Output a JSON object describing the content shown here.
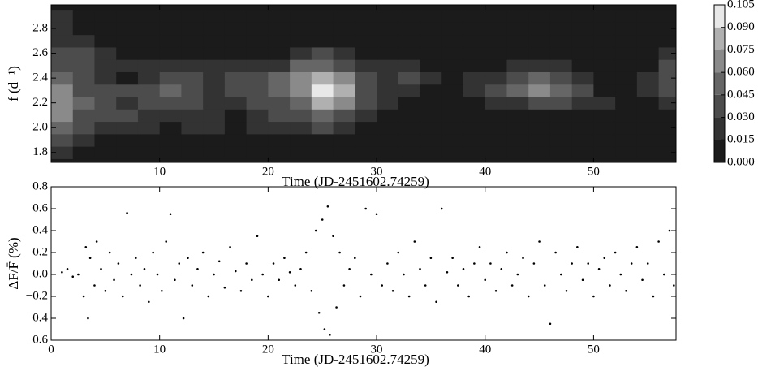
{
  "chart_data": [
    {
      "type": "contour",
      "xlabel": "Time (JD-2451602.74259)",
      "ylabel": "f (d⁻¹)",
      "x": [
        1,
        3,
        5,
        7,
        9,
        11,
        13,
        15,
        17,
        19,
        21,
        23,
        25,
        27,
        29,
        31,
        33,
        35,
        37,
        39,
        41,
        43,
        45,
        47,
        49,
        51,
        53,
        55,
        57
      ],
      "y": [
        1.8,
        1.9,
        2.0,
        2.1,
        2.2,
        2.3,
        2.4,
        2.5,
        2.6,
        2.7,
        2.8,
        2.9
      ],
      "z": [
        [
          0.02,
          0.01,
          0.005,
          0.005,
          0.005,
          0.005,
          0.005,
          0.005,
          0.005,
          0.005,
          0.005,
          0.005,
          0.005,
          0.005,
          0.005,
          0.005,
          0.005,
          0.005,
          0.005,
          0.005,
          0.005,
          0.005,
          0.005,
          0.005,
          0.005,
          0.005,
          0.005,
          0.005,
          0.005
        ],
        [
          0.035,
          0.02,
          0.01,
          0.005,
          0.005,
          0.005,
          0.005,
          0.005,
          0.005,
          0.005,
          0.005,
          0.005,
          0.01,
          0.005,
          0.005,
          0.005,
          0.005,
          0.005,
          0.005,
          0.005,
          0.005,
          0.005,
          0.005,
          0.005,
          0.005,
          0.005,
          0.005,
          0.005,
          0.005
        ],
        [
          0.05,
          0.03,
          0.02,
          0.02,
          0.02,
          0.01,
          0.02,
          0.02,
          0.01,
          0.02,
          0.02,
          0.02,
          0.03,
          0.02,
          0.01,
          0.005,
          0.005,
          0.005,
          0.005,
          0.005,
          0.005,
          0.005,
          0.005,
          0.005,
          0.005,
          0.005,
          0.005,
          0.005,
          0.005
        ],
        [
          0.06,
          0.04,
          0.03,
          0.03,
          0.025,
          0.02,
          0.025,
          0.02,
          0.01,
          0.025,
          0.03,
          0.035,
          0.05,
          0.04,
          0.02,
          0.01,
          0.005,
          0.005,
          0.005,
          0.005,
          0.005,
          0.01,
          0.01,
          0.01,
          0.01,
          0.005,
          0.005,
          0.005,
          0.005
        ],
        [
          0.065,
          0.045,
          0.03,
          0.02,
          0.03,
          0.04,
          0.035,
          0.02,
          0.025,
          0.03,
          0.04,
          0.05,
          0.08,
          0.06,
          0.03,
          0.02,
          0.01,
          0.005,
          0.005,
          0.01,
          0.02,
          0.025,
          0.03,
          0.03,
          0.025,
          0.02,
          0.01,
          0.005,
          0.02
        ],
        [
          0.06,
          0.04,
          0.03,
          0.03,
          0.035,
          0.045,
          0.04,
          0.025,
          0.03,
          0.035,
          0.045,
          0.07,
          0.1,
          0.075,
          0.04,
          0.025,
          0.02,
          0.01,
          0.01,
          0.02,
          0.03,
          0.045,
          0.06,
          0.045,
          0.03,
          0.01,
          0.005,
          0.02,
          0.03
        ],
        [
          0.045,
          0.03,
          0.02,
          0.01,
          0.025,
          0.035,
          0.03,
          0.025,
          0.03,
          0.035,
          0.045,
          0.065,
          0.085,
          0.065,
          0.035,
          0.025,
          0.035,
          0.015,
          0.01,
          0.015,
          0.025,
          0.035,
          0.045,
          0.035,
          0.02,
          0.005,
          0.005,
          0.02,
          0.035
        ],
        [
          0.03,
          0.03,
          0.025,
          0.02,
          0.02,
          0.02,
          0.02,
          0.02,
          0.02,
          0.02,
          0.025,
          0.045,
          0.05,
          0.04,
          0.02,
          0.015,
          0.015,
          0.01,
          0.005,
          0.005,
          0.01,
          0.02,
          0.02,
          0.015,
          0.005,
          0.005,
          0.005,
          0.01,
          0.03
        ],
        [
          0.03,
          0.03,
          0.02,
          0.01,
          0.005,
          0.005,
          0.005,
          0.005,
          0.005,
          0.005,
          0.01,
          0.025,
          0.03,
          0.02,
          0.01,
          0.005,
          0.005,
          0.005,
          0.005,
          0.005,
          0.005,
          0.005,
          0.005,
          0.005,
          0.005,
          0.005,
          0.005,
          0.005,
          0.02
        ],
        [
          0.025,
          0.02,
          0.01,
          0.005,
          0.005,
          0.005,
          0.005,
          0.005,
          0.005,
          0.005,
          0.005,
          0.005,
          0.005,
          0.005,
          0.005,
          0.005,
          0.005,
          0.005,
          0.005,
          0.005,
          0.005,
          0.005,
          0.005,
          0.005,
          0.005,
          0.005,
          0.005,
          0.005,
          0.005
        ],
        [
          0.02,
          0.01,
          0.005,
          0.005,
          0.005,
          0.005,
          0.005,
          0.005,
          0.005,
          0.005,
          0.005,
          0.005,
          0.005,
          0.005,
          0.005,
          0.005,
          0.005,
          0.005,
          0.005,
          0.005,
          0.005,
          0.005,
          0.005,
          0.005,
          0.005,
          0.005,
          0.005,
          0.005,
          0.005
        ],
        [
          0.015,
          0.005,
          0.005,
          0.005,
          0.005,
          0.005,
          0.005,
          0.005,
          0.005,
          0.005,
          0.005,
          0.005,
          0.005,
          0.005,
          0.005,
          0.005,
          0.005,
          0.005,
          0.005,
          0.005,
          0.005,
          0.005,
          0.005,
          0.005,
          0.005,
          0.005,
          0.005,
          0.005,
          0.005
        ]
      ],
      "xlim": [
        0,
        57.6
      ],
      "ylim": [
        1.72,
        2.99
      ],
      "xticks": [
        10,
        20,
        30,
        40,
        50
      ],
      "yticks": [
        1.8,
        {
          "value": 2,
          "label": "2.0"
        },
        2.2,
        2.4,
        2.6,
        2.8
      ],
      "colorbar_ticks": [
        {
          "value": 0,
          "label": "0.000"
        },
        {
          "value": 0.015,
          "label": "0.015"
        },
        {
          "value": 0.03,
          "label": "0.030"
        },
        {
          "value": 0.045,
          "label": "0.045"
        },
        {
          "value": 0.06,
          "label": "0.060"
        },
        {
          "value": 0.075,
          "label": "0.075"
        },
        {
          "value": 0.09,
          "label": "0.090"
        },
        {
          "value": 0.105,
          "label": "0.105"
        }
      ],
      "colors": [
        "#1b1b1b",
        "#333333",
        "#4c4c4c",
        "#666666",
        "#8a8a8a",
        "#b0b0b0",
        "#e8e8e8"
      ]
    },
    {
      "type": "scatter",
      "xlabel": "Time (JD-2451602.74259)",
      "ylabel": "ΔF/F̄ (%)",
      "color": "#000000",
      "x": [
        1,
        1.5,
        2,
        2.5,
        3,
        3.2,
        3.4,
        3.6,
        4,
        4.2,
        4.6,
        5,
        5.4,
        5.8,
        6.2,
        6.6,
        7,
        7.4,
        7.8,
        8.2,
        8.6,
        9,
        9.4,
        9.8,
        10.2,
        10.6,
        11,
        11.4,
        11.8,
        12.2,
        12.6,
        13,
        13.5,
        14,
        14.5,
        15,
        15.5,
        16,
        16.5,
        17,
        17.5,
        18,
        18.5,
        19,
        19.5,
        20,
        20.5,
        21,
        21.5,
        22,
        22.5,
        23,
        23.5,
        24,
        24.4,
        24.7,
        25,
        25.2,
        25.5,
        25.7,
        26,
        26.3,
        26.6,
        27,
        27.5,
        28,
        28.5,
        29,
        29.5,
        30,
        30.5,
        31,
        31.5,
        32,
        32.5,
        33,
        33.5,
        34,
        34.5,
        35,
        35.5,
        36,
        36.5,
        37,
        37.5,
        38,
        38.5,
        39,
        39.5,
        40,
        40.5,
        41,
        41.5,
        42,
        42.5,
        43,
        43.5,
        44,
        44.5,
        45,
        45.5,
        46,
        46.5,
        47,
        47.5,
        48,
        48.5,
        49,
        49.5,
        50,
        50.5,
        51,
        51.5,
        52,
        52.5,
        53,
        53.5,
        54,
        54.5,
        55,
        55.5,
        56,
        56.5,
        57,
        57.4
      ],
      "y": [
        0.02,
        0.05,
        -0.02,
        0.0,
        -0.2,
        0.25,
        -0.4,
        0.15,
        -0.1,
        0.3,
        0.05,
        -0.15,
        0.2,
        -0.05,
        0.1,
        -0.2,
        0.56,
        0.0,
        0.15,
        -0.1,
        0.05,
        -0.25,
        0.2,
        0.0,
        -0.15,
        0.3,
        0.55,
        -0.05,
        0.1,
        -0.4,
        0.15,
        -0.1,
        0.05,
        0.2,
        -0.2,
        0.0,
        0.12,
        -0.12,
        0.25,
        0.03,
        -0.15,
        0.1,
        -0.05,
        0.35,
        0.0,
        -0.2,
        0.1,
        -0.05,
        0.15,
        0.02,
        -0.1,
        0.05,
        0.2,
        -0.15,
        0.4,
        -0.35,
        0.5,
        -0.5,
        0.62,
        -0.55,
        0.35,
        -0.3,
        0.2,
        -0.1,
        0.05,
        0.15,
        -0.2,
        0.6,
        0.0,
        0.55,
        -0.1,
        0.1,
        -0.15,
        0.2,
        0.0,
        -0.2,
        0.3,
        0.05,
        -0.1,
        0.15,
        -0.25,
        0.6,
        0.02,
        0.15,
        -0.1,
        0.05,
        -0.2,
        0.1,
        0.25,
        -0.05,
        0.1,
        -0.15,
        0.05,
        0.2,
        -0.1,
        0.0,
        0.15,
        -0.2,
        0.1,
        0.3,
        -0.1,
        -0.45,
        0.2,
        0.0,
        -0.15,
        0.1,
        0.25,
        -0.05,
        0.1,
        -0.2,
        0.05,
        0.15,
        -0.1,
        0.2,
        0.0,
        -0.15,
        0.1,
        0.25,
        -0.05,
        0.1,
        -0.2,
        0.3,
        0.0,
        0.4,
        -0.1
      ],
      "xlim": [
        0,
        57.6
      ],
      "ylim": [
        -0.6,
        0.8
      ],
      "xticks": [
        0,
        10,
        20,
        30,
        40,
        50
      ],
      "yticks": [
        {
          "value": -0.6,
          "label": "−0.6"
        },
        {
          "value": -0.4,
          "label": "−0.4"
        },
        {
          "value": -0.2,
          "label": "−0.2"
        },
        {
          "value": 0,
          "label": "0.0"
        },
        0.2,
        0.4,
        0.6,
        0.8
      ]
    }
  ]
}
